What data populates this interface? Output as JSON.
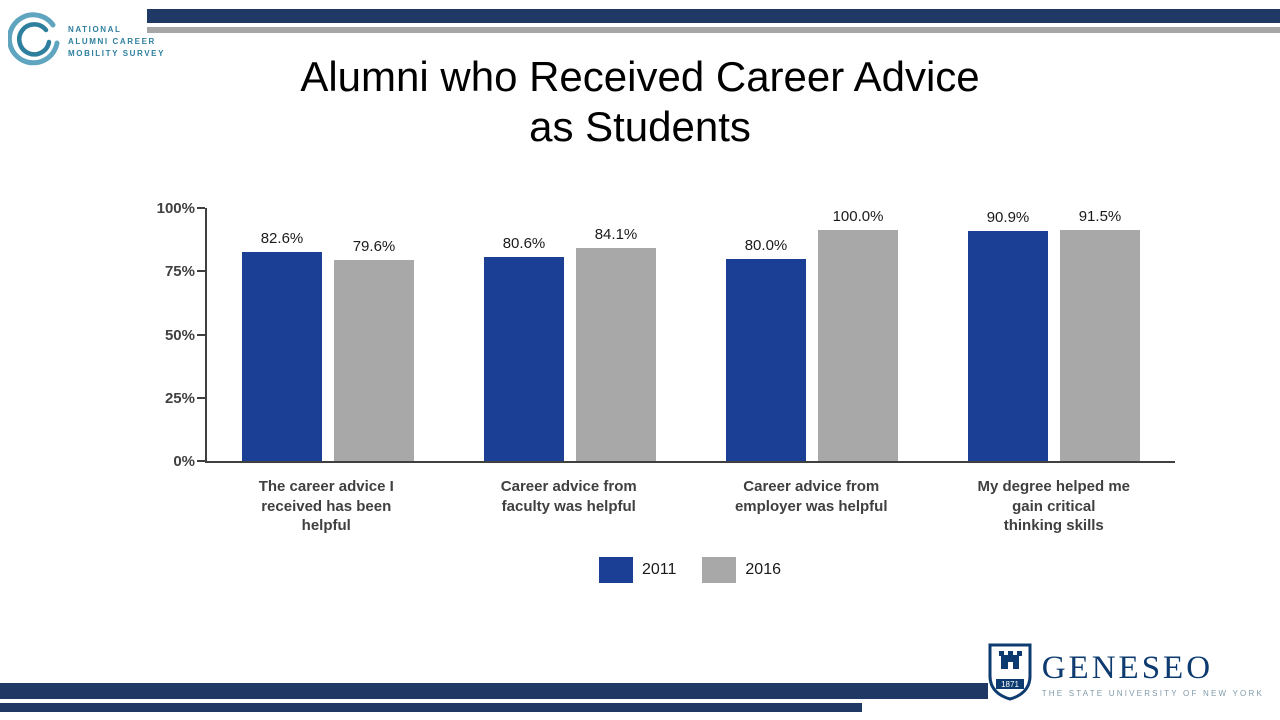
{
  "slide": {
    "title": {
      "line1": "Alumni who Received Career Advice",
      "line2": "as Students"
    }
  },
  "header_logo": {
    "line1": "NATIONAL",
    "line2": "ALUMNI CAREER",
    "line3": "MOBILITY SURVEY"
  },
  "footer_logo": {
    "wordmark": "GENESEO",
    "tagline": "THE STATE UNIVERSITY OF NEW YORK",
    "shield_year": "1871"
  },
  "colors": {
    "accent_navy": "#1f3864",
    "accent_gray": "#a6a6a6",
    "bar_2011": "#1a3f94",
    "bar_2016": "#a8a8a8",
    "logo_teal": "#2e7f9e",
    "geneseo_navy": "#0d3b70"
  },
  "chart_data": {
    "type": "bar",
    "title": "Alumni who Received Career Advice as Students",
    "categories": [
      "The career advice I\nreceived has been\nhelpful",
      "Career advice from\nfaculty was helpful",
      "Career advice from\nemployer was helpful",
      "My degree helped me\ngain critical\nthinking skills"
    ],
    "series": [
      {
        "name": "2011",
        "values": [
          82.6,
          80.6,
          80.0,
          90.9
        ],
        "color_key": "bar_2011"
      },
      {
        "name": "2016",
        "values": [
          79.6,
          84.1,
          100.0,
          91.5
        ],
        "color_key": "bar_2016"
      }
    ],
    "value_labels": [
      [
        "82.6%",
        "79.6%"
      ],
      [
        "80.6%",
        "84.1%"
      ],
      [
        "80.0%",
        "100.0%"
      ],
      [
        "90.9%",
        "91.5%"
      ]
    ],
    "yticks": [
      {
        "value": 0,
        "label": "0%"
      },
      {
        "value": 25,
        "label": "25%"
      },
      {
        "value": 50,
        "label": "50%"
      },
      {
        "value": 75,
        "label": "75%"
      },
      {
        "value": 100,
        "label": "100%"
      }
    ],
    "ylim": [
      0,
      100
    ],
    "xlabel": "",
    "ylabel": "",
    "grid": false,
    "legend": [
      "2011",
      "2016"
    ],
    "legend_position": "bottom"
  }
}
